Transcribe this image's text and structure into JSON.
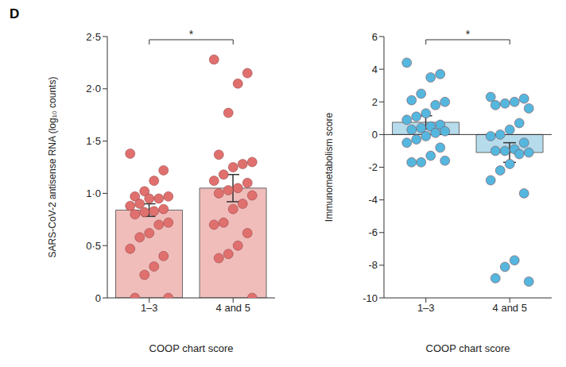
{
  "chart_data": [
    {
      "type": "bar_scatter",
      "title": "D",
      "x_label": "COOP chart score",
      "y_label": "SARS-CoV-2 antisense RNA (log₁₀ counts)",
      "categories": [
        "1–3",
        "4 and 5"
      ],
      "ylim": [
        0,
        2.5
      ],
      "yticks": [
        0,
        {
          "value": 0.5,
          "label": "0·5"
        },
        {
          "value": 1,
          "label": "1·0"
        },
        {
          "value": 1.5,
          "label": "1·5"
        },
        {
          "value": 2,
          "label": "2·0"
        },
        {
          "value": 2.5,
          "label": "2·5"
        }
      ],
      "series": [
        {
          "type": "bar",
          "color": "#f0bdbb",
          "values": [
            0.84,
            1.05
          ],
          "errors": [
            0.06,
            0.13
          ]
        },
        {
          "type": "scatter",
          "color": "#e0706e",
          "marker": "circle",
          "values": [
            [
              1.38,
              1.22,
              1.12,
              1.02,
              0.97,
              0.97,
              0.95,
              0.95,
              0.9,
              0.88,
              0.85,
              0.83,
              0.82,
              0.8,
              0.72,
              0.7,
              0.62,
              0.58,
              0.47,
              0.4,
              0.3,
              0.22,
              0.0,
              0.0
            ],
            [
              2.28,
              2.15,
              2.05,
              1.77,
              1.37,
              1.3,
              1.28,
              1.25,
              1.18,
              1.12,
              1.1,
              1.05,
              1.03,
              1.0,
              0.98,
              0.9,
              0.85,
              0.72,
              0.7,
              0.62,
              0.5,
              0.42,
              0.38,
              0.0
            ]
          ]
        }
      ],
      "annotations": [
        {
          "text": "*",
          "from": "1–3",
          "to": "4 and 5"
        }
      ]
    },
    {
      "type": "bar_scatter",
      "x_label": "COOP chart score",
      "y_label": "Immunometabolism score",
      "categories": [
        "1–3",
        "4 and 5"
      ],
      "ylim": [
        -10,
        6
      ],
      "yticks": [
        -10,
        -8,
        -6,
        -4,
        -2,
        0,
        2,
        4,
        6
      ],
      "series": [
        {
          "type": "bar",
          "color": "#b6dcec",
          "values": [
            0.75,
            -1.1
          ],
          "errors": [
            0.4,
            0.6
          ]
        },
        {
          "type": "scatter",
          "color": "#55b6de",
          "marker": "circle",
          "values": [
            [
              4.4,
              3.7,
              3.5,
              2.5,
              2.1,
              2.0,
              1.8,
              1.3,
              1.1,
              0.9,
              0.6,
              0.5,
              0.4,
              0.3,
              0.2,
              0.1,
              -0.1,
              -0.3,
              -0.5,
              -0.8,
              -1.3,
              -1.7,
              -1.7,
              -1.6
            ],
            [
              2.3,
              2.2,
              2.0,
              1.9,
              1.8,
              1.6,
              0.7,
              0.3,
              0.0,
              -0.1,
              -0.5,
              -0.9,
              -1.0,
              -1.0,
              -1.1,
              -1.2,
              -1.8,
              -2.2,
              -2.8,
              -3.6,
              -7.7,
              -8.1,
              -8.8,
              -9.0
            ]
          ]
        }
      ],
      "annotations": [
        {
          "text": "*",
          "from": "1–3",
          "to": "4 and 5"
        }
      ]
    }
  ]
}
